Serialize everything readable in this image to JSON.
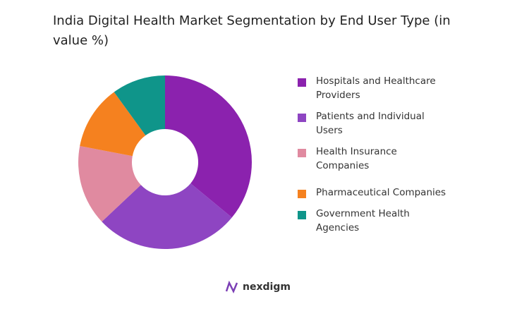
{
  "chart_data": {
    "type": "donut",
    "title": "India Digital Health Market Segmentation by End User Type (in value %)",
    "categories": [
      "Hospitals and Healthcare Providers",
      "Patients and Individual Users",
      "Health Insurance Companies",
      "Pharmaceutical Companies",
      "Government Health Agencies"
    ],
    "values": [
      36,
      27,
      15,
      12,
      10
    ],
    "colors": [
      "#8b22ae",
      "#8e45c2",
      "#e08aa0",
      "#f5811f",
      "#0f958a"
    ],
    "legend": "right"
  },
  "brand": "nexdigm"
}
